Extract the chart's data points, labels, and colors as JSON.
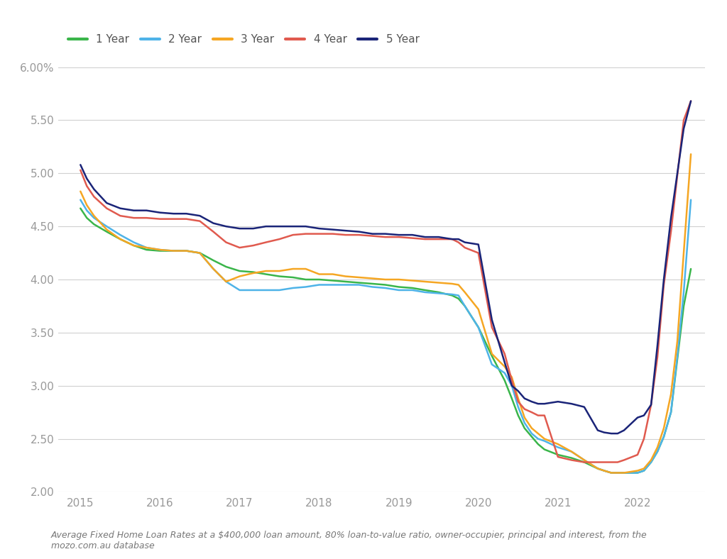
{
  "footnote": "Average Fixed Home Loan Rates at a $400,000 loan amount, 80% loan-to-value ratio, owner-occupier, principal and interest, from the\nmozo.com.au database",
  "ylim": [
    2.0,
    6.0
  ],
  "yticks": [
    2.0,
    2.5,
    3.0,
    3.5,
    4.0,
    4.5,
    5.0,
    5.5,
    6.0
  ],
  "xlim": [
    2014.72,
    2022.85
  ],
  "xticks": [
    2015,
    2016,
    2017,
    2018,
    2019,
    2020,
    2021,
    2022
  ],
  "background_color": "#ffffff",
  "grid_color": "#d0d0d0",
  "colors": {
    "1 Year": "#3ab54a",
    "2 Year": "#4eb3e8",
    "3 Year": "#f5a623",
    "4 Year": "#e05a4e",
    "5 Year": "#1a2478"
  },
  "series": {
    "1 Year": {
      "x": [
        2015.0,
        2015.08,
        2015.17,
        2015.33,
        2015.5,
        2015.67,
        2015.83,
        2016.0,
        2016.17,
        2016.33,
        2016.5,
        2016.67,
        2016.83,
        2017.0,
        2017.17,
        2017.33,
        2017.5,
        2017.67,
        2017.83,
        2018.0,
        2018.17,
        2018.33,
        2018.5,
        2018.67,
        2018.83,
        2019.0,
        2019.17,
        2019.33,
        2019.5,
        2019.67,
        2019.75,
        2019.83,
        2020.0,
        2020.17,
        2020.33,
        2020.42,
        2020.5,
        2020.58,
        2020.67,
        2020.75,
        2020.83,
        2021.0,
        2021.17,
        2021.33,
        2021.5,
        2021.58,
        2021.67,
        2021.75,
        2021.83,
        2022.0,
        2022.08,
        2022.17,
        2022.25,
        2022.33,
        2022.42,
        2022.5,
        2022.58,
        2022.67
      ],
      "y": [
        4.67,
        4.58,
        4.52,
        4.45,
        4.38,
        4.32,
        4.28,
        4.27,
        4.27,
        4.27,
        4.25,
        4.18,
        4.12,
        4.08,
        4.07,
        4.05,
        4.03,
        4.02,
        4.0,
        4.0,
        3.99,
        3.98,
        3.97,
        3.96,
        3.95,
        3.93,
        3.92,
        3.9,
        3.88,
        3.85,
        3.82,
        3.75,
        3.55,
        3.28,
        3.05,
        2.88,
        2.72,
        2.6,
        2.52,
        2.45,
        2.4,
        2.35,
        2.32,
        2.28,
        2.22,
        2.2,
        2.18,
        2.18,
        2.18,
        2.18,
        2.2,
        2.28,
        2.38,
        2.52,
        2.75,
        3.25,
        3.75,
        4.1
      ]
    },
    "2 Year": {
      "x": [
        2015.0,
        2015.08,
        2015.17,
        2015.33,
        2015.5,
        2015.67,
        2015.83,
        2016.0,
        2016.17,
        2016.33,
        2016.5,
        2016.67,
        2016.83,
        2017.0,
        2017.17,
        2017.33,
        2017.5,
        2017.67,
        2017.83,
        2018.0,
        2018.17,
        2018.33,
        2018.5,
        2018.67,
        2018.83,
        2019.0,
        2019.17,
        2019.33,
        2019.5,
        2019.67,
        2019.75,
        2019.83,
        2020.0,
        2020.17,
        2020.33,
        2020.42,
        2020.5,
        2020.58,
        2020.67,
        2020.75,
        2020.83,
        2021.0,
        2021.17,
        2021.33,
        2021.5,
        2021.58,
        2021.67,
        2021.75,
        2021.83,
        2022.0,
        2022.08,
        2022.17,
        2022.25,
        2022.33,
        2022.42,
        2022.5,
        2022.58,
        2022.67
      ],
      "y": [
        4.75,
        4.65,
        4.58,
        4.5,
        4.42,
        4.35,
        4.3,
        4.28,
        4.27,
        4.27,
        4.25,
        4.1,
        3.98,
        3.9,
        3.9,
        3.9,
        3.9,
        3.92,
        3.93,
        3.95,
        3.95,
        3.95,
        3.95,
        3.93,
        3.92,
        3.9,
        3.9,
        3.88,
        3.87,
        3.86,
        3.85,
        3.75,
        3.55,
        3.2,
        3.12,
        3.0,
        2.8,
        2.65,
        2.55,
        2.5,
        2.48,
        2.42,
        2.38,
        2.3,
        2.22,
        2.2,
        2.18,
        2.18,
        2.18,
        2.18,
        2.2,
        2.28,
        2.38,
        2.52,
        2.75,
        3.28,
        3.88,
        4.75
      ]
    },
    "3 Year": {
      "x": [
        2015.0,
        2015.08,
        2015.17,
        2015.33,
        2015.5,
        2015.67,
        2015.83,
        2016.0,
        2016.17,
        2016.33,
        2016.5,
        2016.67,
        2016.83,
        2017.0,
        2017.17,
        2017.33,
        2017.5,
        2017.67,
        2017.83,
        2018.0,
        2018.17,
        2018.33,
        2018.5,
        2018.67,
        2018.83,
        2019.0,
        2019.17,
        2019.33,
        2019.5,
        2019.67,
        2019.75,
        2019.83,
        2020.0,
        2020.17,
        2020.33,
        2020.42,
        2020.5,
        2020.58,
        2020.67,
        2020.75,
        2020.83,
        2021.0,
        2021.17,
        2021.33,
        2021.5,
        2021.58,
        2021.67,
        2021.75,
        2021.83,
        2022.0,
        2022.08,
        2022.17,
        2022.25,
        2022.33,
        2022.42,
        2022.5,
        2022.58,
        2022.67
      ],
      "y": [
        4.83,
        4.7,
        4.6,
        4.47,
        4.38,
        4.32,
        4.3,
        4.28,
        4.27,
        4.27,
        4.25,
        4.1,
        3.98,
        4.03,
        4.06,
        4.08,
        4.08,
        4.1,
        4.1,
        4.05,
        4.05,
        4.03,
        4.02,
        4.01,
        4.0,
        4.0,
        3.99,
        3.98,
        3.97,
        3.96,
        3.95,
        3.88,
        3.72,
        3.3,
        3.18,
        3.08,
        2.88,
        2.7,
        2.6,
        2.55,
        2.5,
        2.45,
        2.38,
        2.3,
        2.22,
        2.2,
        2.18,
        2.18,
        2.18,
        2.2,
        2.22,
        2.3,
        2.42,
        2.6,
        2.92,
        3.42,
        4.25,
        5.18
      ]
    },
    "4 Year": {
      "x": [
        2015.0,
        2015.08,
        2015.17,
        2015.33,
        2015.5,
        2015.67,
        2015.83,
        2016.0,
        2016.17,
        2016.33,
        2016.5,
        2016.67,
        2016.83,
        2017.0,
        2017.17,
        2017.33,
        2017.5,
        2017.67,
        2017.83,
        2018.0,
        2018.17,
        2018.33,
        2018.5,
        2018.67,
        2018.83,
        2019.0,
        2019.17,
        2019.33,
        2019.5,
        2019.67,
        2019.75,
        2019.83,
        2020.0,
        2020.17,
        2020.33,
        2020.42,
        2020.5,
        2020.58,
        2020.67,
        2020.75,
        2020.83,
        2021.0,
        2021.17,
        2021.33,
        2021.5,
        2021.58,
        2021.67,
        2021.75,
        2021.83,
        2022.0,
        2022.08,
        2022.17,
        2022.25,
        2022.33,
        2022.42,
        2022.5,
        2022.58,
        2022.67
      ],
      "y": [
        5.03,
        4.88,
        4.78,
        4.67,
        4.6,
        4.58,
        4.58,
        4.57,
        4.57,
        4.57,
        4.55,
        4.45,
        4.35,
        4.3,
        4.32,
        4.35,
        4.38,
        4.42,
        4.43,
        4.43,
        4.43,
        4.42,
        4.42,
        4.41,
        4.4,
        4.4,
        4.39,
        4.38,
        4.38,
        4.38,
        4.35,
        4.3,
        4.25,
        3.55,
        3.3,
        3.05,
        2.85,
        2.78,
        2.75,
        2.72,
        2.72,
        2.33,
        2.3,
        2.28,
        2.28,
        2.28,
        2.28,
        2.28,
        2.3,
        2.35,
        2.5,
        2.82,
        3.27,
        3.95,
        4.45,
        4.98,
        5.5,
        5.68
      ]
    },
    "5 Year": {
      "x": [
        2015.0,
        2015.08,
        2015.17,
        2015.33,
        2015.5,
        2015.67,
        2015.83,
        2016.0,
        2016.17,
        2016.33,
        2016.5,
        2016.67,
        2016.83,
        2017.0,
        2017.17,
        2017.33,
        2017.5,
        2017.67,
        2017.83,
        2018.0,
        2018.17,
        2018.33,
        2018.5,
        2018.67,
        2018.83,
        2019.0,
        2019.17,
        2019.33,
        2019.5,
        2019.67,
        2019.75,
        2019.83,
        2020.0,
        2020.17,
        2020.33,
        2020.42,
        2020.5,
        2020.58,
        2020.67,
        2020.75,
        2020.83,
        2021.0,
        2021.17,
        2021.33,
        2021.5,
        2021.58,
        2021.67,
        2021.75,
        2021.83,
        2022.0,
        2022.08,
        2022.17,
        2022.25,
        2022.33,
        2022.42,
        2022.5,
        2022.58,
        2022.67
      ],
      "y": [
        5.08,
        4.95,
        4.85,
        4.72,
        4.67,
        4.65,
        4.65,
        4.63,
        4.62,
        4.62,
        4.6,
        4.53,
        4.5,
        4.48,
        4.48,
        4.5,
        4.5,
        4.5,
        4.5,
        4.48,
        4.47,
        4.46,
        4.45,
        4.43,
        4.43,
        4.42,
        4.42,
        4.4,
        4.4,
        4.38,
        4.38,
        4.35,
        4.33,
        3.62,
        3.22,
        3.0,
        2.95,
        2.88,
        2.85,
        2.83,
        2.83,
        2.85,
        2.83,
        2.8,
        2.58,
        2.56,
        2.55,
        2.55,
        2.58,
        2.7,
        2.72,
        2.82,
        3.38,
        4.0,
        4.58,
        5.0,
        5.42,
        5.68
      ]
    }
  }
}
